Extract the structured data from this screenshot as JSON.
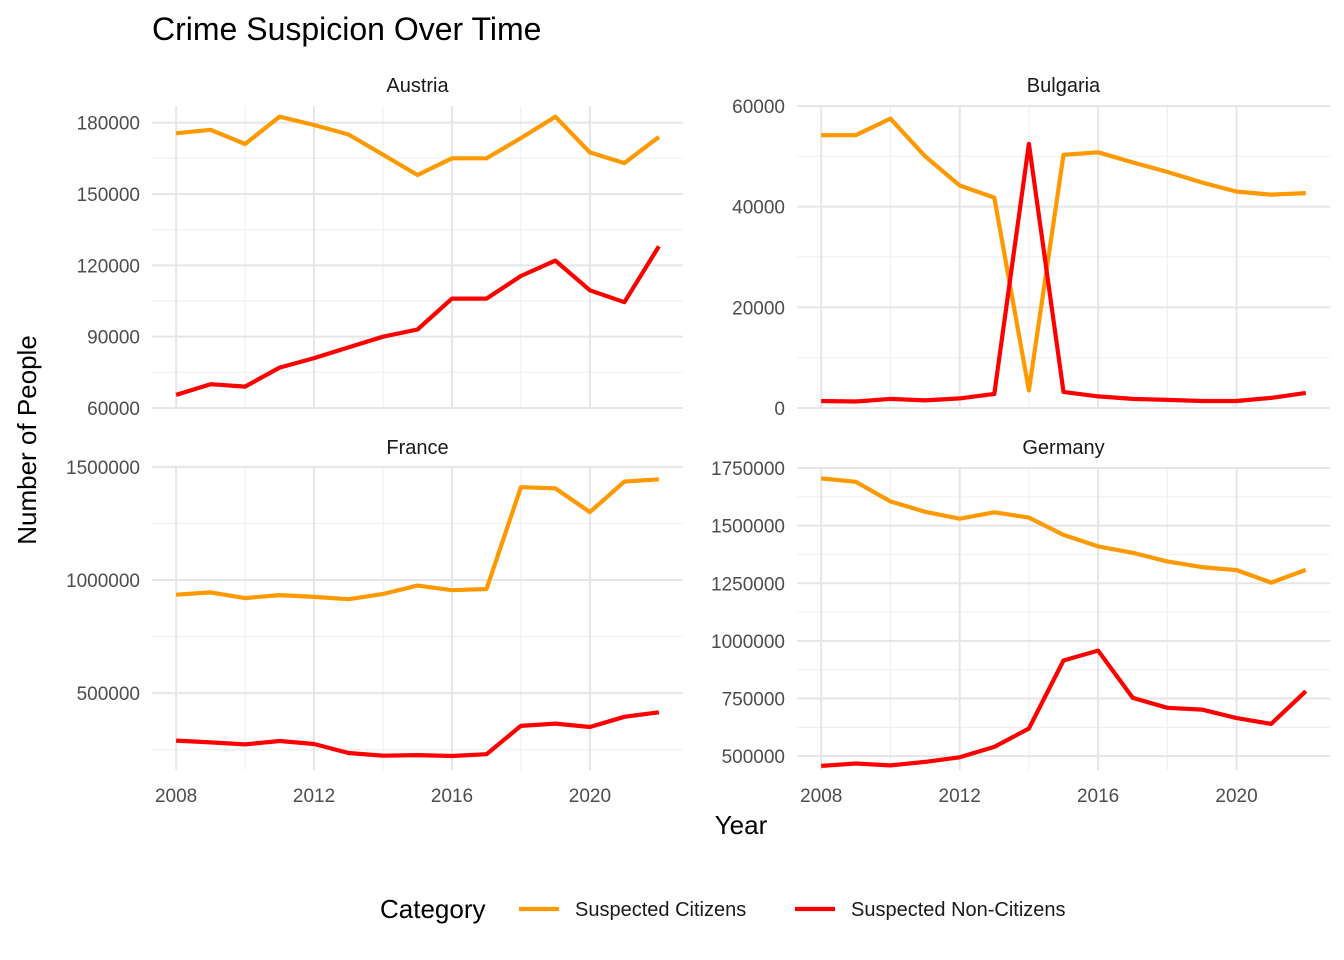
{
  "chart_data": {
    "type": "line",
    "title": "Crime Suspicion Over Time",
    "xlabel": "Year",
    "ylabel": "Number of People",
    "x": [
      2008,
      2009,
      2010,
      2011,
      2012,
      2013,
      2014,
      2015,
      2016,
      2017,
      2018,
      2019,
      2020,
      2021,
      2022
    ],
    "x_ticks": [
      2008,
      2012,
      2016,
      2020
    ],
    "x_tick_labels": [
      "2008",
      "2012",
      "2016",
      "2020"
    ],
    "xlim": [
      2007.3,
      2022.7
    ],
    "grid": true,
    "legend": {
      "title": "Category",
      "position": "bottom",
      "entries": [
        {
          "label": "Suspected Citizens",
          "color": "#FF9900"
        },
        {
          "label": "Suspected Non-Citizens",
          "color": "#FF0000"
        }
      ]
    },
    "panels": [
      {
        "name": "Austria",
        "ylim": [
          60000,
          187000
        ],
        "y_ticks": [
          60000,
          90000,
          120000,
          150000,
          180000
        ],
        "y_tick_labels": [
          "60000",
          "90000",
          "120000",
          "150000",
          "180000"
        ],
        "series": [
          {
            "name": "Suspected Citizens",
            "values": [
              175500,
              177000,
              171000,
              182500,
              179000,
              175000,
              166500,
              158000,
              165000,
              165000,
              173500,
              182500,
              167500,
              163000,
              174000
            ]
          },
          {
            "name": "Suspected Non-Citizens",
            "values": [
              65500,
              70000,
              69000,
              77000,
              81000,
              85500,
              90000,
              93000,
              106000,
              106000,
              115500,
              122000,
              109500,
              104500,
              128000
            ]
          }
        ]
      },
      {
        "name": "Bulgaria",
        "ylim": [
          0,
          60000
        ],
        "y_ticks": [
          0,
          20000,
          40000,
          60000
        ],
        "y_tick_labels": [
          "0",
          "20000",
          "40000",
          "60000"
        ],
        "series": [
          {
            "name": "Suspected Citizens",
            "values": [
              54200,
              54200,
              57500,
              50000,
              44200,
              41800,
              3500,
              50300,
              50800,
              48800,
              46900,
              44800,
              43000,
              42400,
              42700
            ]
          },
          {
            "name": "Suspected Non-Citizens",
            "values": [
              1400,
              1300,
              1800,
              1500,
              1900,
              2800,
              52500,
              3200,
              2300,
              1800,
              1600,
              1400,
              1400,
              2000,
              3000
            ]
          }
        ]
      },
      {
        "name": "France",
        "ylim": [
          160000,
          1495000
        ],
        "y_ticks": [
          500000,
          1000000,
          1500000
        ],
        "y_tick_labels": [
          "500000",
          "1000000",
          "1500000"
        ],
        "series": [
          {
            "name": "Suspected Citizens",
            "values": [
              935000,
              945000,
              920000,
              933000,
              925000,
              915000,
              938000,
              975000,
              955000,
              960000,
              1410000,
              1405000,
              1300000,
              1435000,
              1445000
            ]
          },
          {
            "name": "Suspected Non-Citizens",
            "values": [
              290000,
              282000,
              273000,
              288000,
              275000,
              235000,
              223000,
              226000,
              222000,
              230000,
              355000,
              365000,
              350000,
              395000,
              415000
            ]
          }
        ]
      },
      {
        "name": "Germany",
        "ylim": [
          440000,
          1750000
        ],
        "y_ticks": [
          500000,
          750000,
          1000000,
          1250000,
          1500000,
          1750000
        ],
        "y_tick_labels": [
          "500000",
          "750000",
          "1000000",
          "1250000",
          "1500000",
          "1750000"
        ],
        "series": [
          {
            "name": "Suspected Citizens",
            "values": [
              1705000,
              1690000,
              1605000,
              1560000,
              1530000,
              1558000,
              1535000,
              1460000,
              1410000,
              1382000,
              1345000,
              1320000,
              1307000,
              1253000,
              1308000
            ]
          },
          {
            "name": "Suspected Non-Citizens",
            "values": [
              458000,
              468000,
              460000,
              475000,
              495000,
              540000,
              620000,
              915000,
              958000,
              753000,
              710000,
              702000,
              665000,
              640000,
              782000
            ]
          }
        ]
      }
    ]
  }
}
